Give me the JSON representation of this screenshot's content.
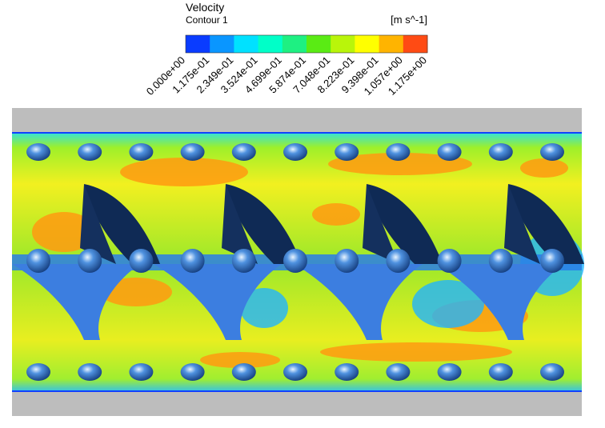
{
  "legend": {
    "title": "Velocity",
    "subtitle": "Contour 1",
    "unit": "[m s^-1]",
    "colors": [
      "#0a3cff",
      "#0a96ff",
      "#00e1ff",
      "#00ffc8",
      "#1ef082",
      "#5aeb14",
      "#b9f50a",
      "#ffff00",
      "#ffb400",
      "#ff4b14"
    ],
    "labels": [
      "0.000e+00",
      "1.175e-01",
      "2.349e-01",
      "3.524e-01",
      "4.699e-01",
      "5.874e-01",
      "7.048e-01",
      "8.223e-01",
      "9.398e-01",
      "1.057e+00",
      "1.175e+00"
    ]
  }
}
